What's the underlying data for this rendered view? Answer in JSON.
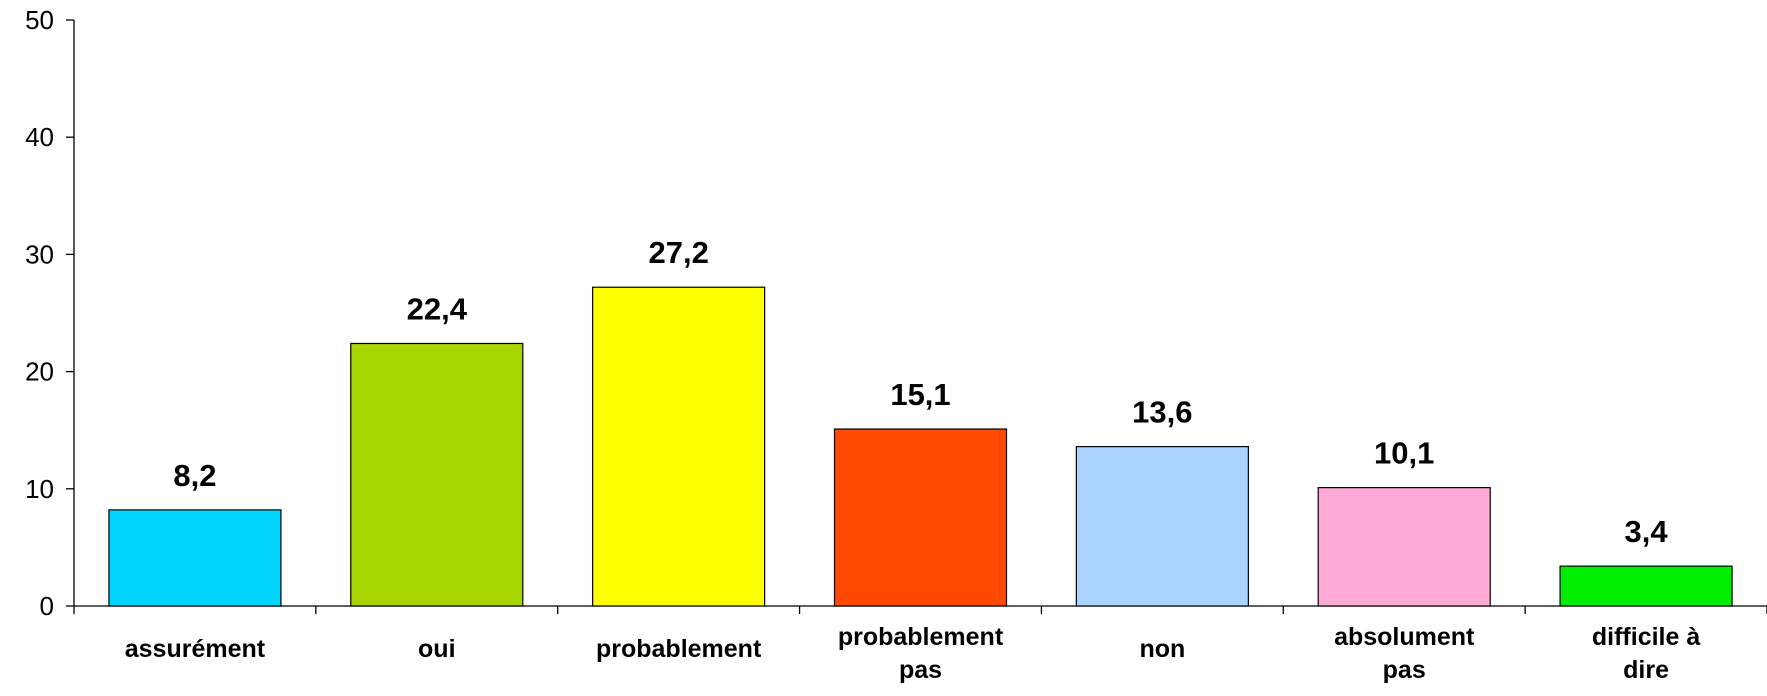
{
  "chart_data": {
    "type": "bar",
    "title": "",
    "xlabel": "",
    "ylabel": "",
    "ylim": [
      0,
      50
    ],
    "yticks": [
      "0",
      "10",
      "20",
      "30",
      "40",
      "50"
    ],
    "grid": false,
    "legend": "none",
    "categories": [
      [
        "assurément"
      ],
      [
        "oui"
      ],
      [
        "probablement"
      ],
      [
        "probablement",
        "pas"
      ],
      [
        "non"
      ],
      [
        "absolument",
        "pas"
      ],
      [
        "difficile à",
        "dire"
      ]
    ],
    "values": [
      8.2,
      22.4,
      27.2,
      15.1,
      13.6,
      10.1,
      3.4
    ],
    "data_labels": [
      "8,2",
      "22,4",
      "27,2",
      "15,1",
      "13,6",
      "10,1",
      "3,4"
    ],
    "colors": [
      "#00D5FF",
      "#A8D600",
      "#FFFF00",
      "#FF4A00",
      "#AAD4FF",
      "#FFAAD4",
      "#00EE00"
    ]
  }
}
